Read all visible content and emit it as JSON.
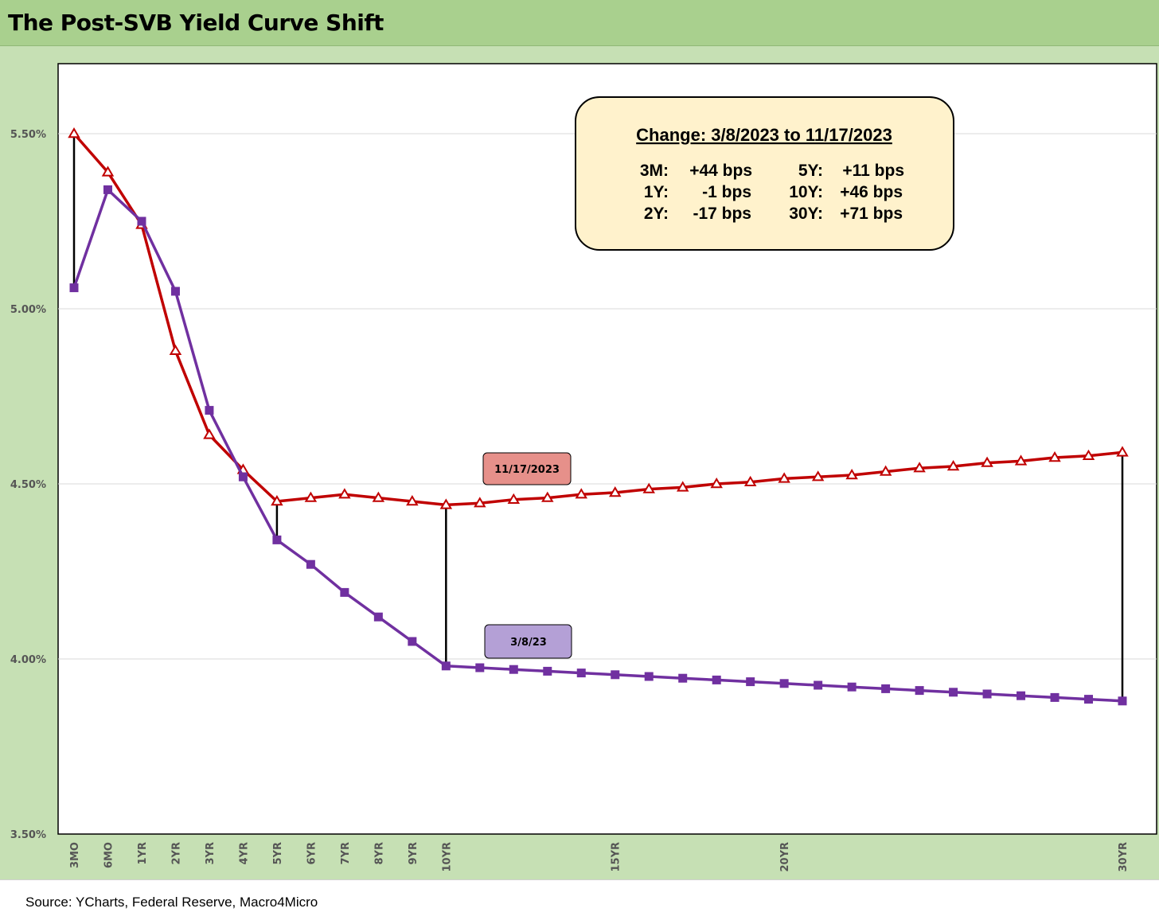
{
  "title": "The Post-SVB Yield Curve Shift",
  "source": "Source: YCharts, Federal Reserve, Macro4Micro",
  "colors": {
    "nov": "#c00000",
    "mar": "#7030a0",
    "title_bar": "#a9d08e",
    "chart_bg": "#c6e0b4",
    "annotation_fill": "#fff2cc",
    "nov_label_fill": "#e6908a",
    "mar_label_fill": "#b4a0d6"
  },
  "annotation": {
    "title": "Change: 3/8/2023 to 11/17/2023",
    "rows": [
      {
        "k1": "3M:",
        "v1": "+44 bps",
        "k2": "5Y:",
        "v2": "+11 bps"
      },
      {
        "k1": "1Y:",
        "v1": "-1 bps",
        "k2": "10Y:",
        "v2": "+46 bps"
      },
      {
        "k1": "2Y:",
        "v1": "-17 bps",
        "k2": "30Y:",
        "v2": "+71 bps"
      }
    ]
  },
  "chart_data": {
    "type": "line",
    "title": "The Post-SVB Yield Curve Shift",
    "xlabel": "",
    "ylabel": "",
    "ylim": [
      3.5,
      5.7
    ],
    "yticks": [
      "3.50%",
      "4.00%",
      "4.50%",
      "5.00%",
      "5.50%"
    ],
    "ytick_values": [
      3.5,
      4.0,
      4.5,
      5.0,
      5.5
    ],
    "tick_labels": [
      "3MO",
      "6MO",
      "1YR",
      "2YR",
      "3YR",
      "4YR",
      "5YR",
      "6YR",
      "7YR",
      "8YR",
      "9YR",
      "10YR",
      "15YR",
      "20YR",
      "30YR"
    ],
    "tick_positions": [
      0,
      1,
      2,
      3,
      4,
      5,
      6,
      7,
      8,
      9,
      10,
      11,
      16,
      21,
      31
    ],
    "x_count": 32,
    "grid": true,
    "legend": "inline labels",
    "series": [
      {
        "name": "11/17/2023",
        "marker": "triangle",
        "values": [
          5.5,
          5.39,
          5.24,
          4.88,
          4.64,
          4.54,
          4.45,
          4.46,
          4.47,
          4.46,
          4.45,
          4.44,
          4.445,
          4.455,
          4.46,
          4.47,
          4.475,
          4.485,
          4.49,
          4.5,
          4.505,
          4.515,
          4.52,
          4.525,
          4.535,
          4.545,
          4.55,
          4.56,
          4.565,
          4.575,
          4.58,
          4.59
        ]
      },
      {
        "name": "3/8/23",
        "marker": "square",
        "values": [
          5.06,
          5.34,
          5.25,
          5.05,
          4.71,
          4.52,
          4.34,
          4.27,
          4.19,
          4.12,
          4.05,
          3.98,
          3.975,
          3.97,
          3.965,
          3.96,
          3.955,
          3.95,
          3.945,
          3.94,
          3.935,
          3.93,
          3.925,
          3.92,
          3.915,
          3.91,
          3.905,
          3.9,
          3.895,
          3.89,
          3.885,
          3.88
        ]
      }
    ],
    "drop_lines_at": [
      0,
      6,
      11,
      31
    ]
  }
}
